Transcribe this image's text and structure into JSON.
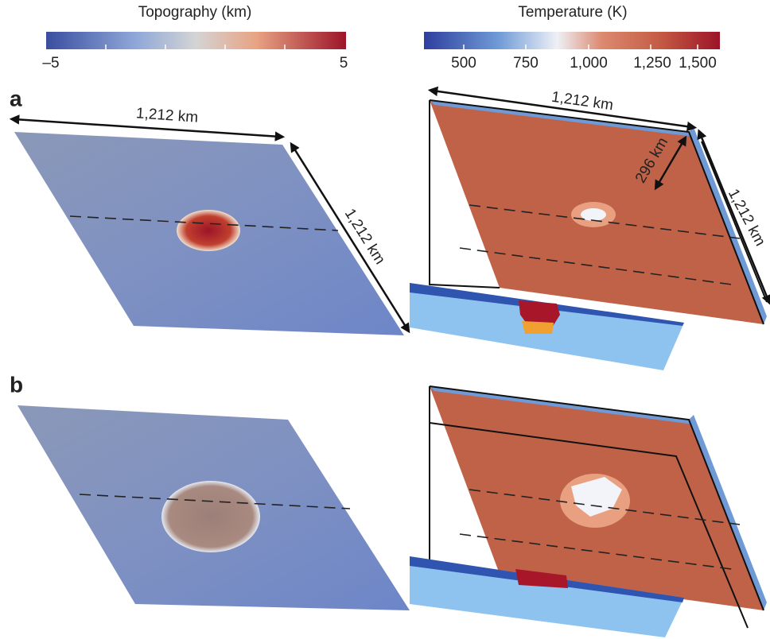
{
  "colorbars": [
    {
      "title": "Topography (km)",
      "ticks": [
        "–5",
        "5"
      ]
    },
    {
      "title": "Temperature (K)",
      "ticks": [
        "500",
        "750",
        "1,000",
        "1,250",
        "1,500"
      ]
    }
  ],
  "panels": [
    {
      "label": "a",
      "topography_dims": [
        "1,212 km",
        "1,212 km"
      ],
      "temperature_dims": [
        "1,212 km",
        "296 km",
        "1,212 km"
      ]
    },
    {
      "label": "b"
    }
  ]
}
